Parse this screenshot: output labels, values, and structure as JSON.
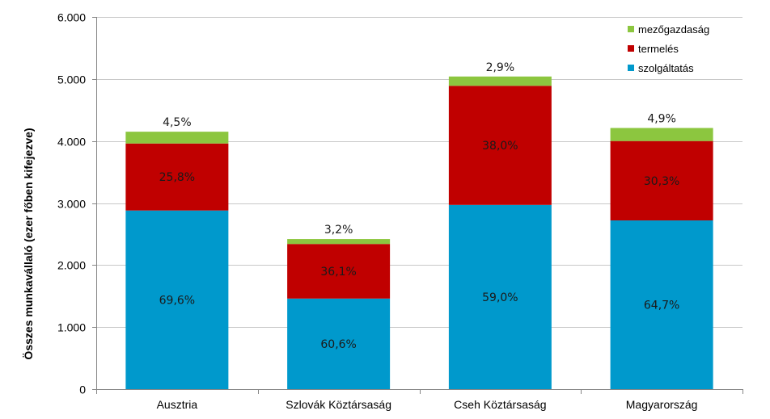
{
  "chart_data": {
    "type": "bar",
    "stacked": true,
    "ylabel": "Összes munkavállaló  (ezer főben kifejezve)",
    "ylim": [
      0,
      6000
    ],
    "yticks": [
      0,
      1000,
      2000,
      3000,
      4000,
      5000,
      6000
    ],
    "ytick_labels": [
      "0",
      "1.000",
      "2.000",
      "3.000",
      "4.000",
      "5.000",
      "6.000"
    ],
    "grid": true,
    "legend_position": "top-right",
    "categories": [
      "Ausztria",
      "Szlovák Köztársaság",
      "Cseh Köztársaság",
      "Magyarország"
    ],
    "series": [
      {
        "name": "szolgáltatás",
        "color": "#0099cc",
        "values": [
          2880,
          1460,
          2970,
          2720
        ],
        "labels": [
          "69,6%",
          "60,6%",
          "59,0%",
          "64,7%"
        ]
      },
      {
        "name": "termelés",
        "color": "#c00000",
        "values": [
          1080,
          880,
          1920,
          1280
        ],
        "labels": [
          "25,8%",
          "36,1%",
          "38,0%",
          "30,3%"
        ]
      },
      {
        "name": "mezőgazdaság",
        "color": "#8cc63f",
        "values": [
          190,
          80,
          150,
          210
        ],
        "labels": [
          "4,5%",
          "3,2%",
          "2,9%",
          "4,9%"
        ]
      }
    ],
    "legend_order": [
      "mezőgazdaság",
      "termelés",
      "szolgáltatás"
    ]
  }
}
